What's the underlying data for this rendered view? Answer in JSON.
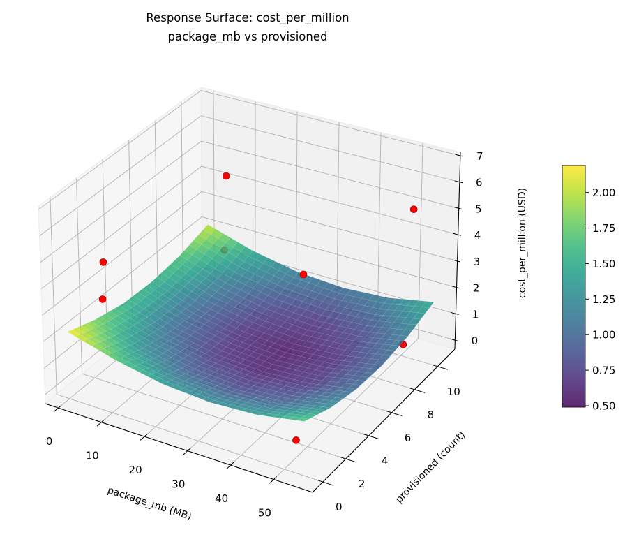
{
  "chart_data": {
    "type": "surface",
    "title": "Response Surface: cost_per_million",
    "subtitle": "package_mb vs provisioned",
    "xlabel": "package_mb (MB)",
    "ylabel": "provisioned (count)",
    "zlabel": "cost_per_million (USD)",
    "xlim": [
      -3,
      59
    ],
    "ylim": [
      -0.9,
      11.5
    ],
    "zlim": [
      -0.34,
      7.13
    ],
    "x_ticks": [
      "0",
      "10",
      "20",
      "30",
      "40",
      "50"
    ],
    "y_ticks": [
      "0",
      "2",
      "4",
      "6",
      "8",
      "10"
    ],
    "z_ticks": [
      "0",
      "1",
      "2",
      "3",
      "4",
      "5",
      "6",
      "7"
    ],
    "grid": true,
    "colormap": "viridis",
    "surface": {
      "x": [
        0,
        11,
        22,
        33,
        44,
        55
      ],
      "y": [
        0,
        2.2,
        4.4,
        6.6,
        8.8,
        11
      ],
      "z": [
        [
          2.19,
          1.71,
          1.38,
          1.27,
          1.38,
          1.71
        ],
        [
          1.82,
          1.28,
          0.95,
          0.84,
          0.95,
          1.28
        ],
        [
          1.58,
          1.04,
          0.71,
          0.6,
          0.71,
          1.04
        ],
        [
          1.54,
          0.99,
          0.67,
          0.56,
          0.67,
          0.99
        ],
        [
          1.69,
          1.14,
          0.82,
          0.71,
          0.82,
          1.14
        ],
        [
          2.03,
          1.49,
          1.16,
          1.05,
          1.16,
          1.49
        ]
      ]
    },
    "scatter": [
      [
        15.3,
        7.5,
        6.0
      ],
      [
        1.5,
        2.4,
        4.0
      ],
      [
        3.6,
        1.6,
        3.0
      ],
      [
        14.1,
        7.7,
        3.0
      ],
      [
        33.3,
        7.6,
        3.0
      ],
      [
        53.4,
        9.7,
        5.5
      ],
      [
        55.0,
        8.4,
        1.0
      ],
      [
        51.0,
        0.7,
        0.5
      ]
    ],
    "scatter_color": "#ff0000",
    "colorbar": {
      "range": [
        0.49,
        2.19
      ],
      "ticks": [
        "0.50",
        "0.75",
        "1.00",
        "1.25",
        "1.50",
        "1.75",
        "2.00"
      ],
      "tick_values": [
        0.5,
        0.75,
        1.0,
        1.25,
        1.5,
        1.75,
        2.0
      ]
    }
  }
}
